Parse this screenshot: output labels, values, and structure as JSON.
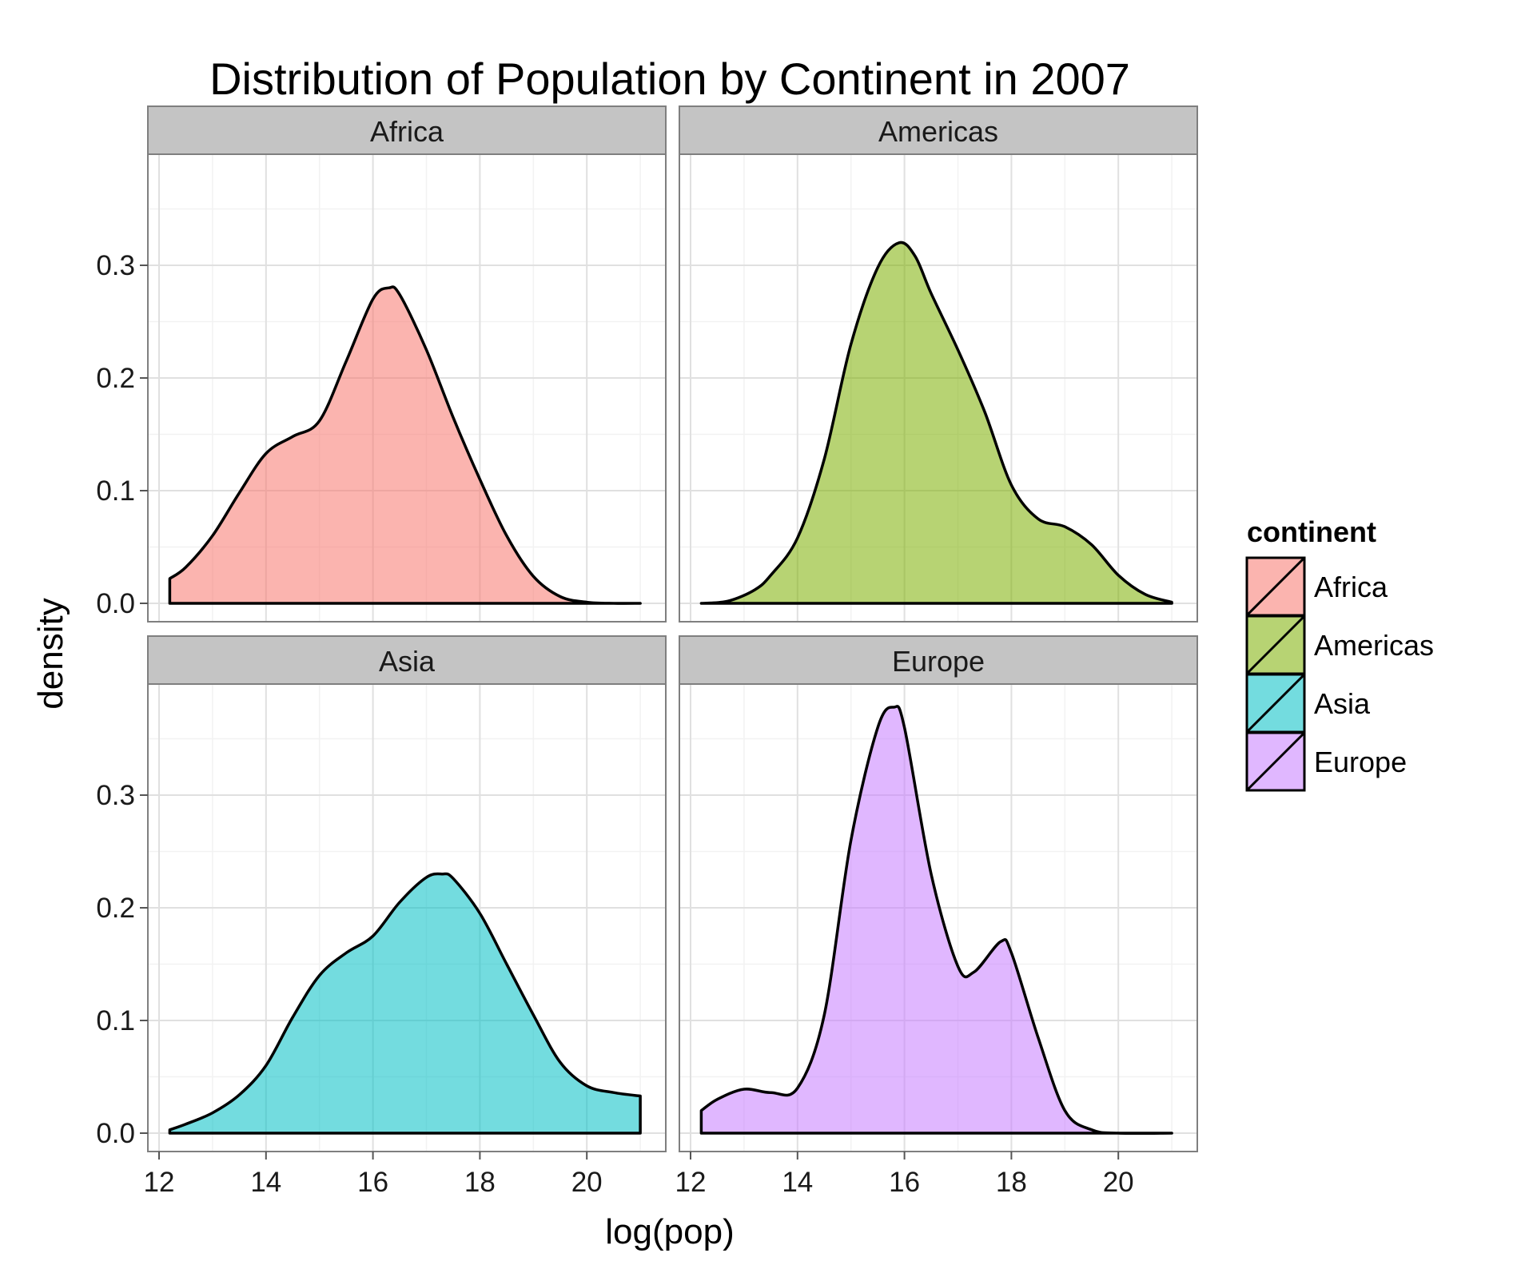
{
  "chart_data": {
    "type": "area",
    "subtype": "faceted density plot",
    "title": "Distribution of Population by Continent in 2007",
    "xlabel": "log(pop)",
    "ylabel": "density",
    "xlim": [
      12.0,
      21.5
    ],
    "ylim": [
      0,
      0.4
    ],
    "xticks": [
      12,
      14,
      16,
      18,
      20
    ],
    "yticks": [
      0.0,
      0.1,
      0.2,
      0.3
    ],
    "grid": true,
    "legend": {
      "title": "continent",
      "position": "right"
    },
    "series": [
      {
        "name": "Africa",
        "color": "#F8766D",
        "x": [
          12.2,
          12.5,
          13.0,
          13.5,
          14.0,
          14.5,
          15.0,
          15.5,
          16.0,
          16.3,
          16.5,
          17.0,
          17.5,
          18.0,
          18.5,
          19.0,
          19.5,
          20.0,
          20.5,
          21.0
        ],
        "y": [
          0.022,
          0.032,
          0.06,
          0.098,
          0.133,
          0.148,
          0.162,
          0.215,
          0.27,
          0.28,
          0.274,
          0.225,
          0.165,
          0.11,
          0.06,
          0.024,
          0.006,
          0.001,
          0.0,
          0.0
        ]
      },
      {
        "name": "Americas",
        "color": "#7CAE00",
        "x": [
          12.2,
          12.7,
          13.2,
          13.5,
          14.0,
          14.5,
          15.0,
          15.5,
          15.9,
          16.2,
          16.5,
          17.0,
          17.5,
          18.0,
          18.5,
          19.0,
          19.5,
          20.0,
          20.5,
          21.0
        ],
        "y": [
          0.0,
          0.002,
          0.012,
          0.025,
          0.058,
          0.128,
          0.23,
          0.298,
          0.32,
          0.308,
          0.275,
          0.225,
          0.17,
          0.105,
          0.075,
          0.068,
          0.052,
          0.025,
          0.008,
          0.001
        ]
      },
      {
        "name": "Asia",
        "color": "#00BFC4",
        "x": [
          12.2,
          12.5,
          13.0,
          13.5,
          14.0,
          14.5,
          15.0,
          15.5,
          16.0,
          16.5,
          17.0,
          17.3,
          17.5,
          18.0,
          18.5,
          19.0,
          19.5,
          20.0,
          20.5,
          21.0
        ],
        "y": [
          0.003,
          0.008,
          0.018,
          0.034,
          0.06,
          0.103,
          0.14,
          0.16,
          0.175,
          0.205,
          0.227,
          0.23,
          0.226,
          0.195,
          0.15,
          0.105,
          0.063,
          0.042,
          0.036,
          0.033
        ]
      },
      {
        "name": "Europe",
        "color": "#C77CFF",
        "x": [
          12.2,
          12.5,
          13.0,
          13.5,
          14.0,
          14.5,
          15.0,
          15.5,
          15.8,
          16.0,
          16.5,
          17.0,
          17.3,
          17.8,
          18.0,
          18.5,
          19.0,
          19.5,
          20.0,
          21.0
        ],
        "y": [
          0.02,
          0.03,
          0.039,
          0.036,
          0.04,
          0.105,
          0.26,
          0.36,
          0.378,
          0.36,
          0.23,
          0.148,
          0.143,
          0.17,
          0.16,
          0.085,
          0.02,
          0.003,
          0.0,
          0.0
        ]
      }
    ]
  }
}
